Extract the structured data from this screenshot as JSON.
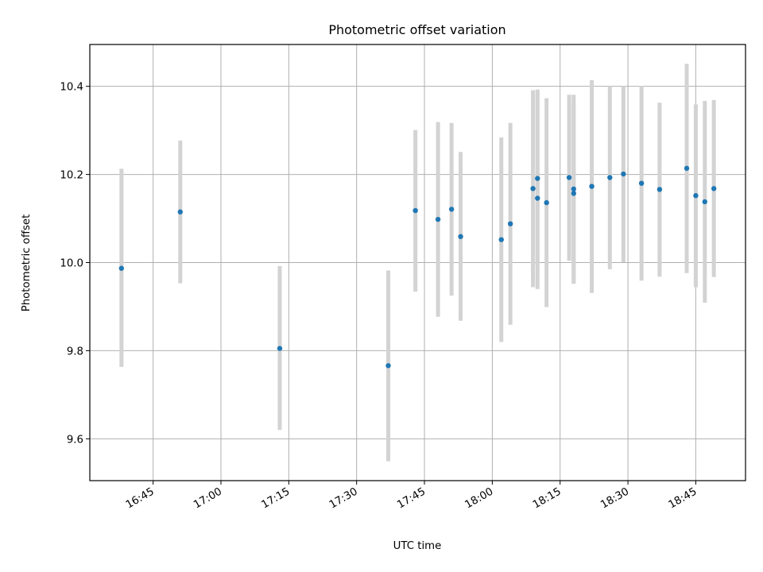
{
  "chart_data": {
    "type": "scatter",
    "title": "Photometric offset variation",
    "xlabel": "UTC time",
    "ylabel": "Photometric offset",
    "grid": true,
    "xlim": [
      "16:31",
      "18:56"
    ],
    "ylim": [
      9.505,
      10.495
    ],
    "x_ticks": [
      "16:45",
      "17:00",
      "17:15",
      "17:30",
      "17:45",
      "18:00",
      "18:15",
      "18:30",
      "18:45"
    ],
    "y_ticks": [
      "9.6",
      "9.8",
      "10.0",
      "10.2",
      "10.4"
    ],
    "marker_color": "#1f77b4",
    "errorbar_color": "#d3d3d3",
    "points": [
      {
        "time": "16:38",
        "y": 9.987,
        "ylow": 9.763,
        "yhigh": 10.213
      },
      {
        "time": "16:51",
        "y": 10.115,
        "ylow": 9.953,
        "yhigh": 10.277
      },
      {
        "time": "17:13",
        "y": 9.805,
        "ylow": 9.62,
        "yhigh": 9.992
      },
      {
        "time": "17:37",
        "y": 9.766,
        "ylow": 9.549,
        "yhigh": 9.982
      },
      {
        "time": "17:43",
        "y": 10.118,
        "ylow": 9.934,
        "yhigh": 10.301
      },
      {
        "time": "17:48",
        "y": 10.098,
        "ylow": 9.877,
        "yhigh": 10.319
      },
      {
        "time": "17:51",
        "y": 10.121,
        "ylow": 9.925,
        "yhigh": 10.317
      },
      {
        "time": "17:53",
        "y": 10.059,
        "ylow": 9.868,
        "yhigh": 10.251
      },
      {
        "time": "18:02",
        "y": 10.052,
        "ylow": 9.82,
        "yhigh": 10.284
      },
      {
        "time": "18:04",
        "y": 10.088,
        "ylow": 9.859,
        "yhigh": 10.317
      },
      {
        "time": "18:09",
        "y": 10.168,
        "ylow": 9.944,
        "yhigh": 10.391
      },
      {
        "time": "18:10",
        "y": 10.146,
        "ylow": 9.94,
        "yhigh": 10.393
      },
      {
        "time": "18:10",
        "y": 10.191,
        "ylow": 9.991,
        "yhigh": 10.391
      },
      {
        "time": "18:12",
        "y": 10.136,
        "ylow": 9.899,
        "yhigh": 10.373
      },
      {
        "time": "18:17",
        "y": 10.193,
        "ylow": 10.004,
        "yhigh": 10.381
      },
      {
        "time": "18:18",
        "y": 10.157,
        "ylow": 9.952,
        "yhigh": 10.362
      },
      {
        "time": "18:18",
        "y": 10.167,
        "ylow": 9.952,
        "yhigh": 10.381
      },
      {
        "time": "18:22",
        "y": 10.173,
        "ylow": 9.931,
        "yhigh": 10.414
      },
      {
        "time": "18:26",
        "y": 10.193,
        "ylow": 9.985,
        "yhigh": 10.4
      },
      {
        "time": "18:29",
        "y": 10.201,
        "ylow": 10.001,
        "yhigh": 10.4
      },
      {
        "time": "18:33",
        "y": 10.18,
        "ylow": 9.959,
        "yhigh": 10.401
      },
      {
        "time": "18:37",
        "y": 10.166,
        "ylow": 9.968,
        "yhigh": 10.363
      },
      {
        "time": "18:43",
        "y": 10.214,
        "ylow": 9.976,
        "yhigh": 10.451
      },
      {
        "time": "18:45",
        "y": 10.152,
        "ylow": 9.944,
        "yhigh": 10.359
      },
      {
        "time": "18:47",
        "y": 10.138,
        "ylow": 9.909,
        "yhigh": 10.367
      },
      {
        "time": "18:49",
        "y": 10.168,
        "ylow": 9.967,
        "yhigh": 10.369
      }
    ]
  }
}
